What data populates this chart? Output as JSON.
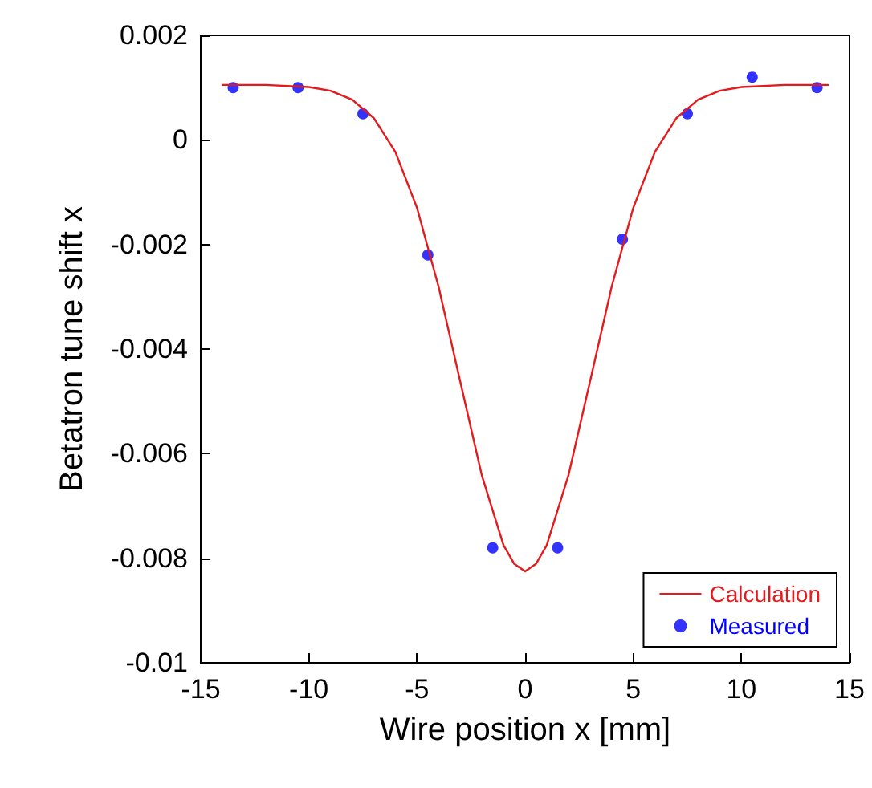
{
  "chart_data": {
    "type": "line",
    "xlabel": "Wire position x [mm]",
    "ylabel": "Betatron tune shift x",
    "xlim": [
      -15,
      15
    ],
    "xticks": [
      -15,
      -10,
      -5,
      0,
      5,
      10,
      15
    ],
    "ylim": [
      -0.01,
      0.002
    ],
    "yticks": [
      -0.01,
      -0.008,
      -0.006,
      -0.004,
      -0.002,
      0,
      0.002
    ],
    "grid": false,
    "legend": "bottom right",
    "series": [
      {
        "name": "Calculation",
        "type": "line",
        "color": "#e41a1c",
        "marker": "none",
        "line_style": "solid",
        "x": [
          -14,
          -12,
          -10,
          -9,
          -8,
          -7,
          -6,
          -5,
          -4,
          -3,
          -2,
          -1,
          -0.5,
          0,
          0.5,
          1,
          2,
          3,
          4,
          5,
          6,
          7,
          8,
          9,
          10,
          12,
          14
        ],
        "values": [
          0.00105,
          0.00105,
          0.00101,
          0.00094,
          0.00077,
          0.00042,
          -0.00023,
          -0.0013,
          -0.00281,
          -0.00462,
          -0.00642,
          -0.00775,
          -0.00811,
          -0.00825,
          -0.00811,
          -0.00775,
          -0.00642,
          -0.00462,
          -0.00281,
          -0.0013,
          -0.00023,
          0.00042,
          0.00077,
          0.00094,
          0.00101,
          0.00105,
          0.00105
        ]
      },
      {
        "name": "Measured",
        "type": "scatter",
        "color": "#0000ff",
        "marker": "circle",
        "x": [
          -13.5,
          -10.5,
          -7.5,
          -4.5,
          -1.5,
          1.5,
          4.5,
          7.5,
          10.5,
          13.5
        ],
        "values": [
          0.001,
          0.001,
          0.0005,
          -0.0022,
          -0.0078,
          -0.0078,
          -0.0019,
          0.0005,
          0.0012,
          0.001
        ]
      }
    ]
  }
}
